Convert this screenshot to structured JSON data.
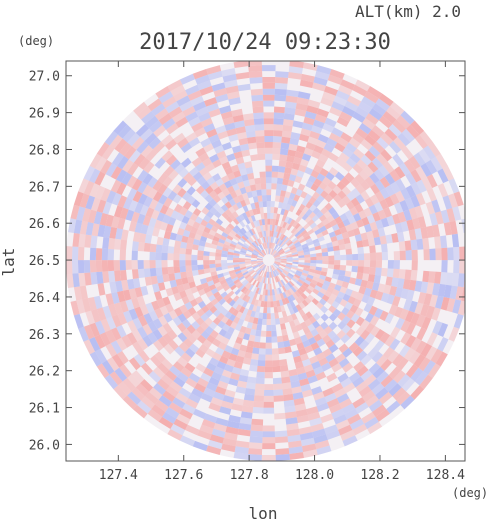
{
  "header": {
    "altitude_label": "ALT(km) 2.0",
    "timestamp": "2017/10/24 09:23:30"
  },
  "chart_data": {
    "type": "heatmap",
    "description_style": "radar PPI polar scan, diverging red/blue",
    "xlabel": "lon",
    "ylabel": "lat",
    "x_unit": "(deg)",
    "y_unit": "(deg)",
    "xlim": [
      127.24,
      128.46
    ],
    "ylim": [
      25.955,
      27.04
    ],
    "x_ticks": [
      127.4,
      127.6,
      127.8,
      128.0,
      128.2,
      128.4
    ],
    "x_tick_labels": [
      "127.4",
      "127.6",
      "127.8",
      "128.0",
      "128.2",
      "128.4"
    ],
    "y_ticks": [
      26.0,
      26.1,
      26.2,
      26.3,
      26.4,
      26.5,
      26.6,
      26.7,
      26.8,
      26.9,
      27.0
    ],
    "y_tick_labels": [
      "26.0",
      "26.1",
      "26.2",
      "26.3",
      "26.4",
      "26.5",
      "26.6",
      "26.7",
      "26.8",
      "26.9",
      "27.0"
    ],
    "center": {
      "lon": 127.86,
      "lat": 26.5
    },
    "radius_deg_lon": 0.62,
    "radius_deg_lat": 0.545,
    "colors": {
      "positive": "#f4a7a7",
      "negative": "#b0b8f2",
      "neutral": "#f4f0f4"
    },
    "grid": false,
    "legend": "none"
  }
}
